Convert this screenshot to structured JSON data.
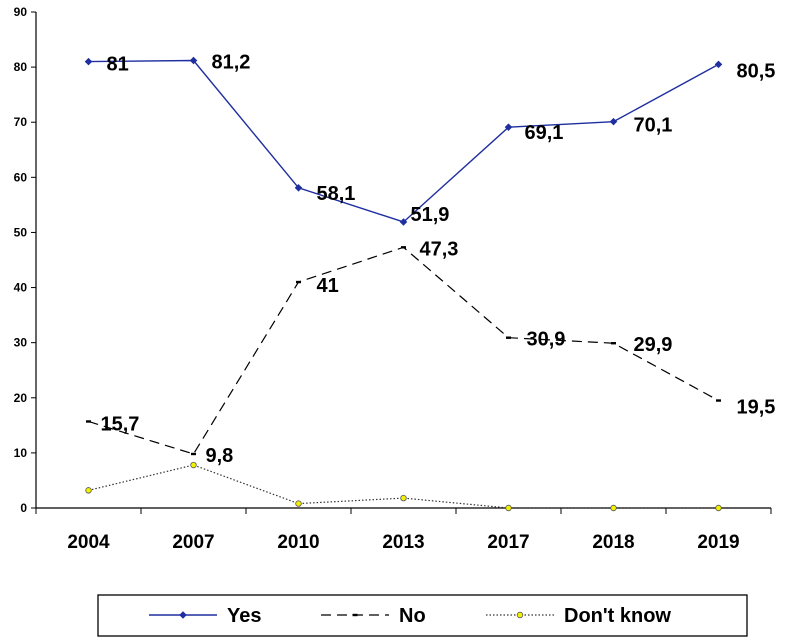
{
  "chart_data": {
    "type": "line",
    "title": "",
    "xlabel": "",
    "ylabel": "",
    "categories": [
      "2004",
      "2007",
      "2010",
      "2013",
      "2017",
      "2018",
      "2019"
    ],
    "ylim": [
      0,
      90
    ],
    "yticks": [
      0,
      10,
      20,
      30,
      40,
      50,
      60,
      70,
      80,
      90
    ],
    "grid": false,
    "legend_position": "bottom",
    "series": [
      {
        "name": "Yes",
        "values": [
          81,
          81.2,
          58.1,
          51.9,
          69.1,
          70.1,
          80.5
        ],
        "labels": [
          "81",
          "81,2",
          "58,1",
          "51,9",
          "69,1",
          "70,1",
          "80,5"
        ],
        "color": "#1f2fa0",
        "line_style": "solid",
        "marker": "diamond"
      },
      {
        "name": "No",
        "values": [
          15.7,
          9.8,
          41,
          47.3,
          30.9,
          29.9,
          19.5
        ],
        "labels": [
          "15,7",
          "9,8",
          "41",
          "47,3",
          "30,9",
          "29,9",
          "19,5"
        ],
        "color": "#000000",
        "line_style": "dashed",
        "marker": "dash"
      },
      {
        "name": "Don't know",
        "values": [
          3.2,
          7.8,
          0.8,
          1.8,
          0,
          0,
          0
        ],
        "labels": [
          "",
          "",
          "",
          "",
          "",
          "",
          ""
        ],
        "color": "#333333",
        "marker_color": "#f2f200",
        "line_style": "dotted",
        "marker": "circle"
      }
    ]
  }
}
